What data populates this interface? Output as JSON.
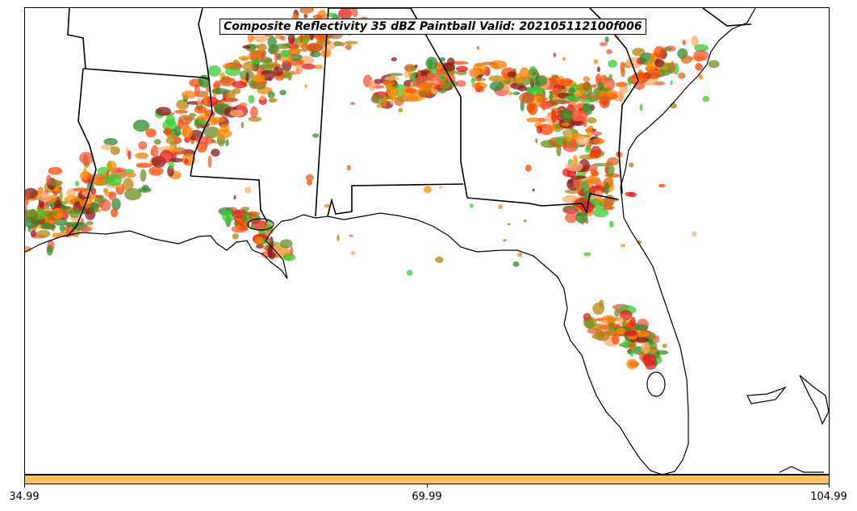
{
  "title": "Composite Reflectivity 35 dBZ Paintball Valid: 202105112100f006",
  "colorbar": {
    "color": "#fdc05b",
    "ticks": [
      "34.99",
      "69.99",
      "104.99"
    ]
  },
  "member_colors": [
    "#ff7f00",
    "#ff4500",
    "#e31a1c",
    "#f7553a",
    "#d2691e",
    "#b8860b",
    "#2e8b2e",
    "#32cd32",
    "#8b1a1a",
    "#fdae6b",
    "#6b8e23",
    "#ff8c00"
  ]
}
